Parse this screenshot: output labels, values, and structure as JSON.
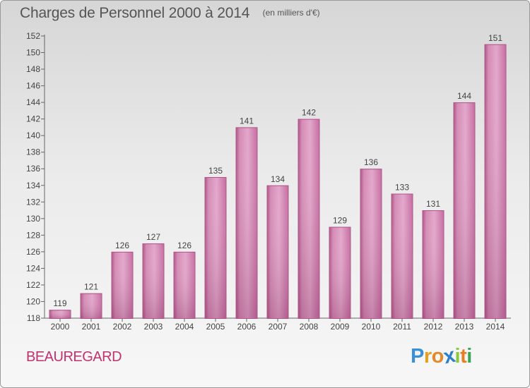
{
  "chart_data": {
    "type": "bar",
    "title": "Charges de Personnel 2000 à 2014",
    "subtitle": "(en milliers d'€)",
    "categories": [
      "2000",
      "2001",
      "2002",
      "2003",
      "2004",
      "2005",
      "2006",
      "2007",
      "2008",
      "2009",
      "2010",
      "2011",
      "2012",
      "2013",
      "2014"
    ],
    "values": [
      119,
      121,
      126,
      127,
      126,
      135,
      141,
      134,
      142,
      129,
      136,
      133,
      131,
      144,
      151
    ],
    "xlabel": "",
    "ylabel": "",
    "ylim": [
      118,
      152
    ],
    "yticks": [
      118,
      120,
      122,
      124,
      126,
      128,
      130,
      132,
      134,
      136,
      138,
      140,
      142,
      144,
      146,
      148,
      150,
      152
    ],
    "grid": false,
    "bar_color": "#c66b9f"
  },
  "location": "BEAUREGARD",
  "brand": {
    "letters": [
      "P",
      "r",
      "o",
      "x",
      "i",
      "t",
      "i"
    ],
    "colors": [
      "#3a8fd6",
      "#e2a020",
      "#e08a2a",
      "#2e7fc9",
      "#8dc63f",
      "#e67e22",
      "#3aa655"
    ]
  }
}
